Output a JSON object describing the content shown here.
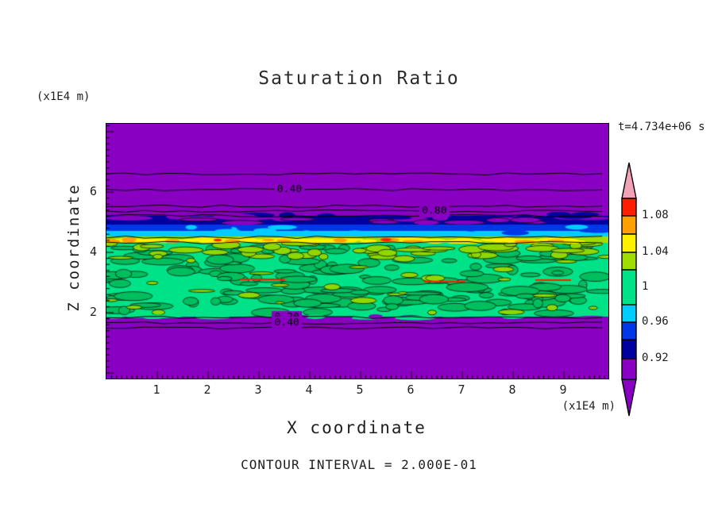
{
  "title": "Saturation Ratio",
  "time_label": "t=4.734e+06 s",
  "contour_note": "CONTOUR INTERVAL = 2.000E-01",
  "axes": {
    "x_label": "X coordinate",
    "x_unit": "(x1E4 m)",
    "y_label": "Z coordinate",
    "y_unit": "(x1E4 m)",
    "x_ticks": [
      1,
      2,
      3,
      4,
      5,
      6,
      7,
      8,
      9
    ],
    "y_ticks": [
      2,
      4,
      6
    ]
  },
  "chart_data": {
    "type": "heatmap",
    "title": "Saturation Ratio",
    "xlabel": "X coordinate",
    "ylabel": "Z coordinate",
    "x_unit": "x1E4 m",
    "y_unit": "x1E4 m",
    "x_range": [
      0,
      9.9
    ],
    "z_range": [
      0,
      8.3
    ],
    "time": "t=4.734e+06 s",
    "contour_interval": 0.2,
    "legend_position": "right-colorbar",
    "bands": [
      {
        "z_range": [
          5.2,
          8.3
        ],
        "saturation": "< 0.92",
        "color": "#8A00C2",
        "note": "unsaturated zone crossed by 0.40 and 0.80 line contours"
      },
      {
        "z_range": [
          4.9,
          5.2
        ],
        "saturation": "0.92-0.94",
        "color": "#0000A0"
      },
      {
        "z_range": [
          4.7,
          4.9
        ],
        "saturation": "0.94-0.96",
        "color": "#0038E8"
      },
      {
        "z_range": [
          4.5,
          4.7
        ],
        "saturation": "0.96-0.98",
        "color": "#00CCFF"
      },
      {
        "z_range": [
          4.3,
          4.5
        ],
        "saturation": "1.02-1.10 streak",
        "color": "#FFF000",
        "note": "thin yellow/orange/red high-saturation streak"
      },
      {
        "z_range": [
          1.9,
          4.3
        ],
        "saturation": "0.98-1.02",
        "color": "#00E287",
        "note": "mottled green zone with darker green islands"
      },
      {
        "z_range": [
          0.0,
          1.9
        ],
        "saturation": "< 0.92",
        "color": "#8A00C2",
        "note": "unsaturated zone crossed by 0.20 and 0.40 line contours"
      }
    ],
    "contour_lines_z": [
      6.6,
      6.08,
      5.53,
      5.37,
      5.21,
      4.5,
      4.32,
      1.84,
      1.66,
      1.5
    ],
    "contour_labels": [
      {
        "text": "0.40",
        "x": 3.6,
        "z": 6.08
      },
      {
        "text": "0.80",
        "x": 6.45,
        "z": 5.37
      },
      {
        "text": "0.20",
        "x": 3.55,
        "z": 1.84
      },
      {
        "text": "0.40",
        "x": 3.55,
        "z": 1.66
      }
    ],
    "colorbar": {
      "tick_labels": [
        "1.08",
        "1.04",
        "1",
        "0.96",
        "0.92"
      ],
      "segments": [
        {
          "color": "#F2A2B6",
          "range": "> 1.10",
          "shape": "top-arrow"
        },
        {
          "color": "#FF1E00",
          "range": "1.08-1.10"
        },
        {
          "color": "#FFA000",
          "range": "1.06-1.08"
        },
        {
          "color": "#FFF000",
          "range": "1.04-1.06"
        },
        {
          "color": "#A0DC00",
          "range": "1.02-1.04"
        },
        {
          "color": "#00E287",
          "range": "0.98-1.02"
        },
        {
          "color": "#00CCFF",
          "range": "0.96-0.98"
        },
        {
          "color": "#0038E8",
          "range": "0.94-0.96"
        },
        {
          "color": "#0000A0",
          "range": "0.92-0.94"
        },
        {
          "color": "#8A00C2",
          "range": "< 0.92",
          "shape": "bottom-arrow"
        }
      ]
    },
    "palette": {
      "purple": "#8A00C2",
      "navy": "#0000A0",
      "blue": "#0038E8",
      "cyan": "#00CCFF",
      "green": "#00E287",
      "green2": "#00BE5E",
      "lime": "#A0DC00",
      "lime2": "#8ED800",
      "yellow": "#FFF000",
      "orange": "#FFA000",
      "red": "#FF1E00",
      "pink": "#F2A2B6",
      "line": "#000000",
      "text": "#1E1E1E"
    }
  }
}
